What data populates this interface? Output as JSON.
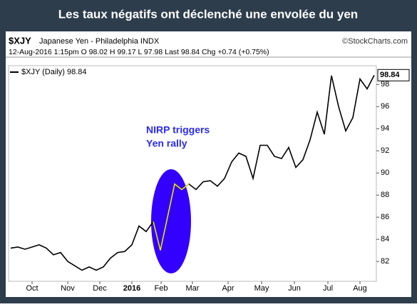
{
  "chart_data": {
    "type": "line",
    "title": "Les taux négatifs ont déclenché une envolée du yen",
    "symbol": "$XJY",
    "subtitle": "Japanese Yen - Philadelphia INDX",
    "credit": "©StockCharts.com",
    "quote_line": "12-Aug-2016 1:15pm  O 98.02  H 99.17  L 97.98  Last 98.84  Chg +0.74 (+0.75%)",
    "annotation": [
      "NIRP triggers",
      "Yen rally"
    ],
    "series": [
      {
        "name": "$XJY (Daily) 98.84",
        "color": "#000000",
        "values": [
          83.2,
          83.3,
          83.1,
          83.3,
          83.5,
          83.2,
          82.6,
          82.8,
          82.0,
          81.6,
          81.2,
          81.5,
          81.2,
          81.5,
          82.3,
          82.8,
          82.9,
          83.5,
          85.2,
          84.7,
          85.6,
          83.0,
          86.0,
          89.0,
          88.5,
          89.0,
          88.5,
          89.2,
          89.3,
          88.8,
          89.5,
          91.0,
          91.8,
          91.5,
          89.5,
          92.5,
          92.5,
          91.5,
          91.3,
          92.3,
          90.5,
          91.2,
          93.0,
          95.5,
          93.5,
          98.8,
          96.0,
          93.8,
          95.0,
          98.5,
          97.6,
          98.84
        ]
      }
    ],
    "highlight": {
      "from": 20,
      "to": 25,
      "color": "#e8e800",
      "fill": "#3300ff"
    },
    "xlim": [
      -0.3,
      51.3
    ],
    "xticks": [
      {
        "value": 3,
        "label": "Oct"
      },
      {
        "value": 8,
        "label": "Nov"
      },
      {
        "value": 12.5,
        "label": "Dec"
      },
      {
        "value": 17,
        "label": "2016"
      },
      {
        "value": 21.1,
        "label": "Feb"
      },
      {
        "value": 25.5,
        "label": "Mar"
      },
      {
        "value": 30.5,
        "label": "Apr"
      },
      {
        "value": 35.2,
        "label": "May"
      },
      {
        "value": 39.8,
        "label": "Jun"
      },
      {
        "value": 44.5,
        "label": "Jul"
      },
      {
        "value": 49,
        "label": "Aug"
      }
    ],
    "ylim": [
      80.2,
      99.7
    ],
    "yticks": [
      82,
      84,
      86,
      88,
      90,
      92,
      94,
      96,
      98
    ],
    "grid": false
  }
}
